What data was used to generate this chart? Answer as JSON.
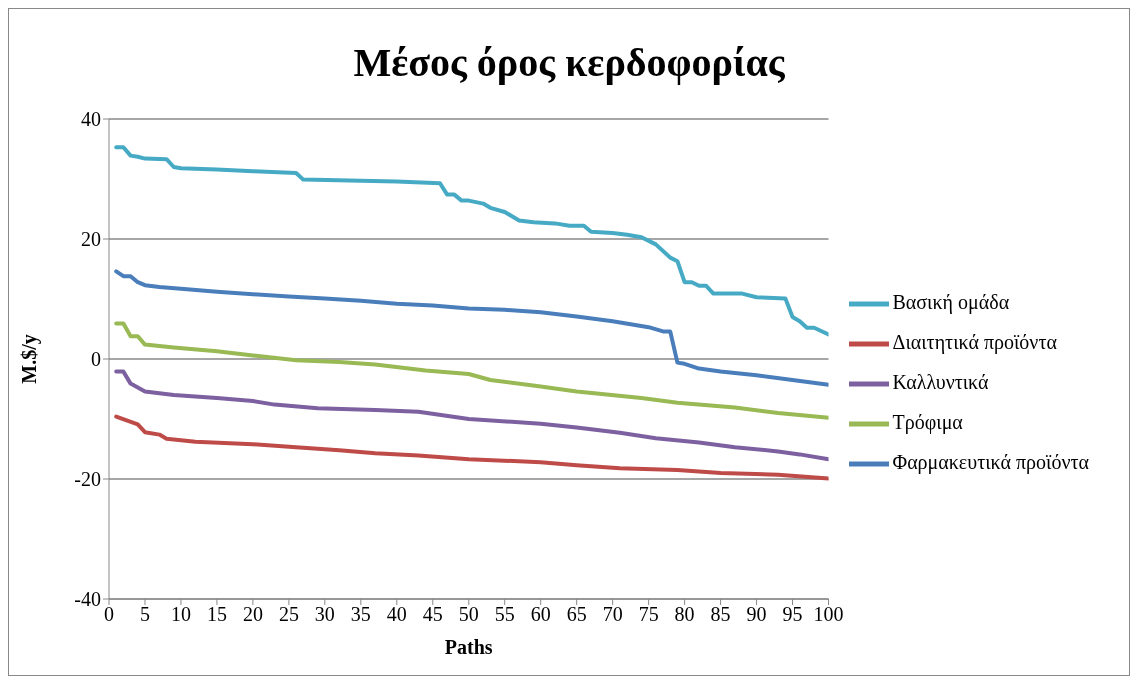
{
  "chart_data": {
    "type": "line",
    "title": "Μέσος όρος κερδοφορίας",
    "xlabel": "Paths",
    "ylabel": "M.$/y",
    "xlim": [
      0,
      100
    ],
    "xticks": [
      0,
      5,
      10,
      15,
      20,
      25,
      30,
      35,
      40,
      45,
      50,
      55,
      60,
      65,
      70,
      75,
      80,
      85,
      90,
      95,
      100
    ],
    "ylim": [
      -40,
      40
    ],
    "yticks": [
      -40,
      -20,
      0,
      20,
      40
    ],
    "grid": "y",
    "legend": "right",
    "marker": "none",
    "line_style": "solid",
    "series": [
      {
        "name": "Φαρμακευτικά προϊόντα",
        "color": "#4a7ebb",
        "x": [
          1,
          2,
          3,
          4,
          5,
          7,
          10,
          15,
          20,
          25,
          30,
          35,
          40,
          45,
          50,
          55,
          60,
          65,
          70,
          75,
          77,
          78,
          79,
          80,
          82,
          85,
          90,
          95,
          100
        ],
        "values": [
          14.6,
          13.8,
          13.8,
          12.8,
          12.3,
          12.0,
          11.7,
          11.2,
          10.8,
          10.4,
          10.1,
          9.7,
          9.2,
          8.9,
          8.4,
          8.2,
          7.8,
          7.1,
          6.3,
          5.3,
          4.6,
          4.6,
          -0.6,
          -0.8,
          -1.6,
          -2.1,
          -2.7,
          -3.5,
          -4.3
        ]
      },
      {
        "name": "Διαιτητικά προϊόντα",
        "color": "#be4b48",
        "x": [
          1,
          4,
          5,
          7,
          8,
          12,
          20,
          26,
          32,
          37,
          43,
          50,
          60,
          65,
          71,
          79,
          85,
          93,
          100
        ],
        "values": [
          -9.6,
          -10.9,
          -12.2,
          -12.6,
          -13.3,
          -13.8,
          -14.2,
          -14.7,
          -15.2,
          -15.7,
          -16.1,
          -16.7,
          -17.2,
          -17.7,
          -18.2,
          -18.5,
          -19.0,
          -19.3,
          -19.9
        ]
      },
      {
        "name": "Τρόφιμα",
        "color": "#98b954",
        "x": [
          1,
          2,
          3,
          4,
          5,
          9,
          15,
          20,
          26,
          32,
          37,
          44,
          50,
          53,
          60,
          65,
          74,
          79,
          87,
          93,
          100
        ],
        "values": [
          5.9,
          5.9,
          3.8,
          3.8,
          2.4,
          1.9,
          1.3,
          0.6,
          -0.2,
          -0.5,
          -0.9,
          -1.9,
          -2.5,
          -3.5,
          -4.6,
          -5.4,
          -6.5,
          -7.3,
          -8.1,
          -9.0,
          -9.8
        ]
      },
      {
        "name": "Καλλυντικά",
        "color": "#7d60a0",
        "x": [
          1,
          2,
          3,
          5,
          9,
          15,
          20,
          23,
          29,
          37,
          43,
          50,
          60,
          65,
          71,
          76,
          82,
          87,
          93,
          96,
          100
        ],
        "values": [
          -2.1,
          -2.1,
          -4.1,
          -5.4,
          -6.0,
          -6.5,
          -7.0,
          -7.6,
          -8.2,
          -8.5,
          -8.8,
          -10.0,
          -10.8,
          -11.4,
          -12.3,
          -13.2,
          -13.9,
          -14.7,
          -15.4,
          -15.9,
          -16.7
        ]
      },
      {
        "name": "Βασική ομάδα",
        "color": "#46aac5",
        "x": [
          1,
          2,
          3,
          4,
          5,
          8,
          9,
          10,
          15,
          20,
          26,
          27,
          35,
          40,
          46,
          47,
          48,
          49,
          50,
          52,
          53,
          55,
          57,
          59,
          62,
          64,
          66,
          67,
          70,
          72,
          74,
          76,
          78,
          79,
          80,
          81,
          82,
          83,
          84,
          88,
          90,
          94,
          95,
          96,
          97,
          98,
          100
        ],
        "values": [
          35.3,
          35.3,
          33.9,
          33.7,
          33.4,
          33.3,
          32.0,
          31.8,
          31.6,
          31.3,
          31.0,
          29.9,
          29.7,
          29.6,
          29.3,
          27.4,
          27.4,
          26.4,
          26.4,
          25.9,
          25.2,
          24.5,
          23.1,
          22.8,
          22.6,
          22.2,
          22.2,
          21.2,
          21.0,
          20.7,
          20.3,
          19.1,
          16.9,
          16.3,
          12.8,
          12.8,
          12.2,
          12.2,
          10.9,
          10.9,
          10.3,
          10.1,
          7.0,
          6.3,
          5.2,
          5.2,
          4.1
        ]
      }
    ]
  }
}
